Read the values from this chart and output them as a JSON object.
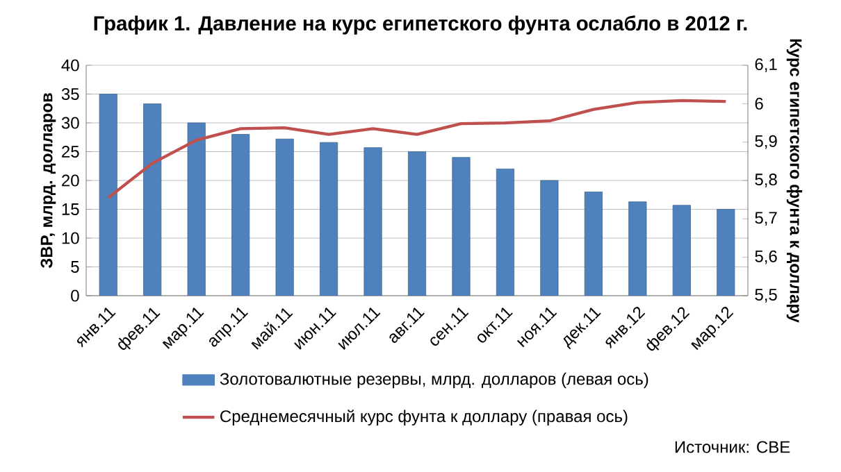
{
  "chart_data": {
    "type": "bar",
    "title": "График 1. Давление на курс египетского фунта ослабло в 2012 г.",
    "ylabel": "ЗВР, млрд. долларов",
    "y2label": "Курс египетского фунта к доллару",
    "categories": [
      "янв.11",
      "фев.11",
      "мар.11",
      "апр.11",
      "май.11",
      "июн.11",
      "июл.11",
      "авг.11",
      "сен.11",
      "окт.11",
      "ноя.11",
      "дек.11",
      "янв.12",
      "фев.12",
      "мар.12"
    ],
    "series": [
      {
        "name": "Золотовалютные резервы, млрд. долларов (левая ось)",
        "color": "#4f81bd",
        "values": [
          35,
          33.3,
          30,
          28,
          27.2,
          26.6,
          25.7,
          25,
          24,
          22,
          20,
          18,
          16.3,
          15.7,
          15
        ]
      },
      {
        "name": "Среднемесячный курс фунта к доллару (правая ось)",
        "type": "line",
        "axis": "y2",
        "color": "#c0504d",
        "values": [
          5.755,
          5.845,
          5.905,
          5.935,
          5.937,
          5.92,
          5.935,
          5.92,
          5.948,
          5.95,
          5.955,
          5.985,
          6.003,
          6.008,
          6.006
        ]
      }
    ],
    "ylim": [
      0,
      40
    ],
    "yticks": [
      0,
      5,
      10,
      15,
      20,
      25,
      30,
      35,
      40
    ],
    "y2lim": [
      5.5,
      6.1
    ],
    "y2ticks": [
      {
        "value": 5.5,
        "label": "5,5"
      },
      {
        "value": 5.6,
        "label": "5,6"
      },
      {
        "value": 5.7,
        "label": "5,7"
      },
      {
        "value": 5.8,
        "label": "5,8"
      },
      {
        "value": 5.9,
        "label": "5,9"
      },
      {
        "value": 6,
        "label": "6"
      },
      {
        "value": 6.1,
        "label": "6,1"
      }
    ],
    "grid": "y",
    "legend": "bottom",
    "marker": "none",
    "line_style": "solid",
    "annotations": [
      "Источник: CBE"
    ]
  }
}
